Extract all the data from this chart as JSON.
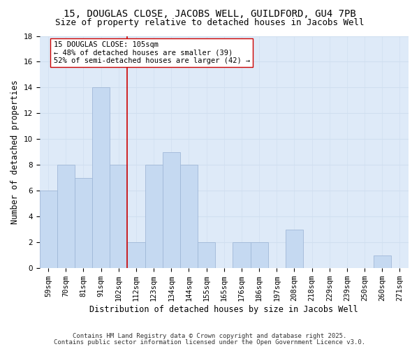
{
  "title1": "15, DOUGLAS CLOSE, JACOBS WELL, GUILDFORD, GU4 7PB",
  "title2": "Size of property relative to detached houses in Jacobs Well",
  "xlabel": "Distribution of detached houses by size in Jacobs Well",
  "ylabel": "Number of detached properties",
  "bar_labels": [
    "59sqm",
    "70sqm",
    "81sqm",
    "91sqm",
    "102sqm",
    "112sqm",
    "123sqm",
    "134sqm",
    "144sqm",
    "155sqm",
    "165sqm",
    "176sqm",
    "186sqm",
    "197sqm",
    "208sqm",
    "218sqm",
    "229sqm",
    "239sqm",
    "250sqm",
    "260sqm",
    "271sqm"
  ],
  "bar_values": [
    6,
    8,
    7,
    14,
    8,
    2,
    8,
    9,
    8,
    2,
    0,
    2,
    2,
    0,
    3,
    0,
    0,
    0,
    0,
    1,
    0
  ],
  "bar_color": "#c5d9f1",
  "bar_edge_color": "#a0b8d8",
  "vline_x": 4.5,
  "vline_color": "#cc0000",
  "annotation_line1": "15 DOUGLAS CLOSE: 105sqm",
  "annotation_line2": "← 48% of detached houses are smaller (39)",
  "annotation_line3": "52% of semi-detached houses are larger (42) →",
  "ylim": [
    0,
    18
  ],
  "yticks": [
    0,
    2,
    4,
    6,
    8,
    10,
    12,
    14,
    16,
    18
  ],
  "grid_color": "#d0dff0",
  "bg_color": "#deeaf8",
  "footer1": "Contains HM Land Registry data © Crown copyright and database right 2025.",
  "footer2": "Contains public sector information licensed under the Open Government Licence v3.0.",
  "title1_fontsize": 10,
  "title2_fontsize": 9,
  "axis_label_fontsize": 8.5,
  "tick_fontsize": 7.5,
  "annotation_fontsize": 7.5,
  "footer_fontsize": 6.5
}
